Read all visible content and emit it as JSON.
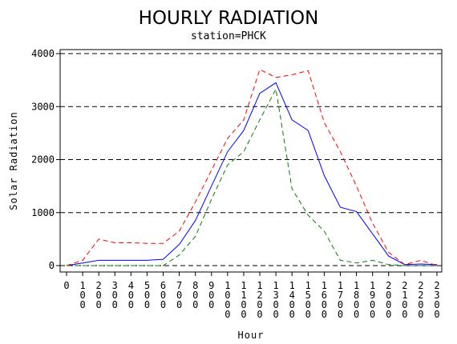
{
  "chart_data": {
    "type": "line",
    "title": "HOURLY RADIATION",
    "subtitle": "station=PHCK",
    "xlabel": "Hour",
    "ylabel": "Solar Radiation",
    "xlim": [
      0,
      2300
    ],
    "ylim": [
      0,
      4000
    ],
    "y_ticks": [
      "0",
      "1000",
      "2000",
      "3000",
      "4000"
    ],
    "x_tick_labels": [
      "0",
      "100",
      "200",
      "300",
      "400",
      "500",
      "600",
      "700",
      "800",
      "900",
      "1000",
      "1100",
      "1200",
      "1300",
      "1400",
      "1500",
      "1600",
      "1700",
      "1800",
      "1900",
      "2000",
      "2100",
      "2200",
      "2300"
    ],
    "grid": "horizontal dashed at y ticks",
    "x": [
      0,
      100,
      200,
      300,
      400,
      500,
      600,
      700,
      800,
      900,
      1000,
      1100,
      1200,
      1300,
      1400,
      1500,
      1600,
      1700,
      1800,
      1900,
      2000,
      2100,
      2200,
      2300
    ],
    "series": [
      {
        "color": "#0000ff",
        "dash": "solid",
        "values": [
          0,
          50,
          100,
          100,
          100,
          100,
          120,
          400,
          850,
          1500,
          2150,
          2550,
          3250,
          3450,
          2750,
          2550,
          1700,
          1100,
          1020,
          600,
          180,
          20,
          30,
          20
        ]
      },
      {
        "color": "#ff0000",
        "dash": "dashed",
        "values": [
          0,
          100,
          500,
          430,
          430,
          420,
          420,
          650,
          1200,
          1800,
          2400,
          2750,
          3700,
          3550,
          3600,
          3680,
          2700,
          2150,
          1500,
          800,
          250,
          20,
          100,
          0
        ]
      },
      {
        "color": "#008000",
        "dash": "dashed",
        "values": [
          0,
          0,
          0,
          0,
          0,
          0,
          0,
          200,
          550,
          1250,
          1900,
          2150,
          2750,
          3330,
          1450,
          950,
          650,
          100,
          50,
          100,
          20,
          0,
          0,
          0
        ]
      }
    ]
  }
}
